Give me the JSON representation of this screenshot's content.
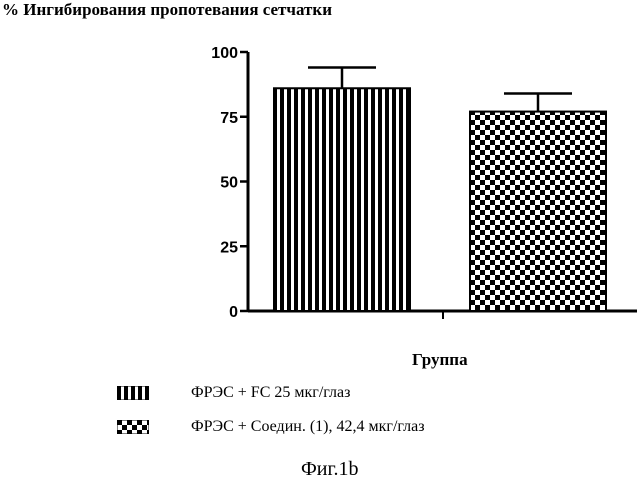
{
  "chart_data": {
    "type": "bar",
    "title": "% Ингибирования пропотевания сетчатки",
    "xlabel": "Группа",
    "ylabel": "",
    "ylim": [
      0,
      100
    ],
    "yticks": [
      "0",
      "25",
      "50",
      "75",
      "100"
    ],
    "categories": [
      "ФРЭС +  FC 25 мкг/глаз",
      "ФРЭС + Соедин. (1), 42,4 мкг/глаз"
    ],
    "values": [
      86,
      77
    ],
    "error_upper": [
      94,
      84
    ],
    "patterns": [
      "vertical-stripes",
      "checkerboard"
    ],
    "legend": [
      "ФРЭС +  FC 25 мкг/глаз",
      "ФРЭС + Соедин. (1), 42,4 мкг/глаз"
    ],
    "legend_position": "bottom",
    "grid": false
  },
  "caption": "Фиг.1b"
}
